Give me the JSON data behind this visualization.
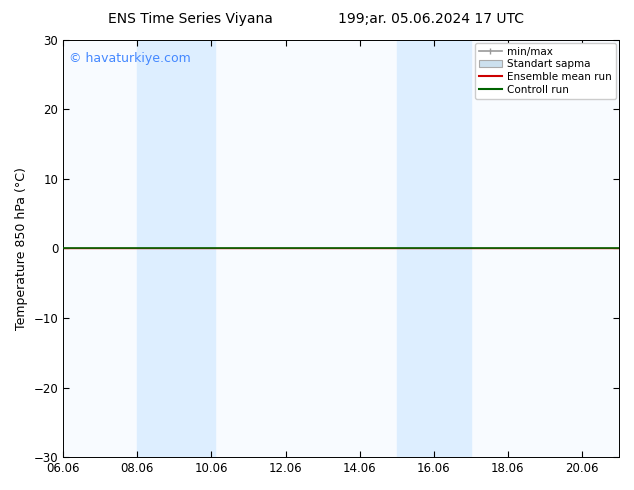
{
  "title_left": "ENS Time Series Viyana",
  "title_right": "199;ar. 05.06.2024 17 UTC",
  "ylabel": "Temperature 850 hPa (°C)",
  "watermark": "© havaturkiye.com",
  "ylim": [
    -30,
    30
  ],
  "yticks": [
    -30,
    -20,
    -10,
    0,
    10,
    20,
    30
  ],
  "xtick_labels": [
    "06.06",
    "08.06",
    "10.06",
    "12.06",
    "14.06",
    "16.06",
    "18.06",
    "20.06"
  ],
  "xtick_positions": [
    0,
    2,
    4,
    6,
    8,
    10,
    12,
    14
  ],
  "xlim": [
    0,
    15
  ],
  "shaded_bands": [
    {
      "x_start": 2.0,
      "x_end": 2.3,
      "color": "#ddeeff"
    },
    {
      "x_start": 2.3,
      "x_end": 4.1,
      "color": "#ddeeff"
    },
    {
      "x_start": 9.0,
      "x_end": 9.3,
      "color": "#ddeeff"
    },
    {
      "x_start": 9.3,
      "x_end": 10.5,
      "color": "#ddeeff"
    },
    {
      "x_start": 10.5,
      "x_end": 11.0,
      "color": "#ddeeff"
    }
  ],
  "control_run_color": "#006400",
  "ensemble_mean_color": "#cc0000",
  "minmax_color": "#999999",
  "standart_sapma_color": "#cce0ee",
  "background_color": "#ffffff",
  "plot_bg_color": "#f8fbff",
  "legend_labels": [
    "min/max",
    "Standart sapma",
    "Ensemble mean run",
    "Controll run"
  ],
  "title_fontsize": 10,
  "tick_fontsize": 8.5,
  "ylabel_fontsize": 9,
  "watermark_color": "#4488ff",
  "watermark_fontsize": 9
}
